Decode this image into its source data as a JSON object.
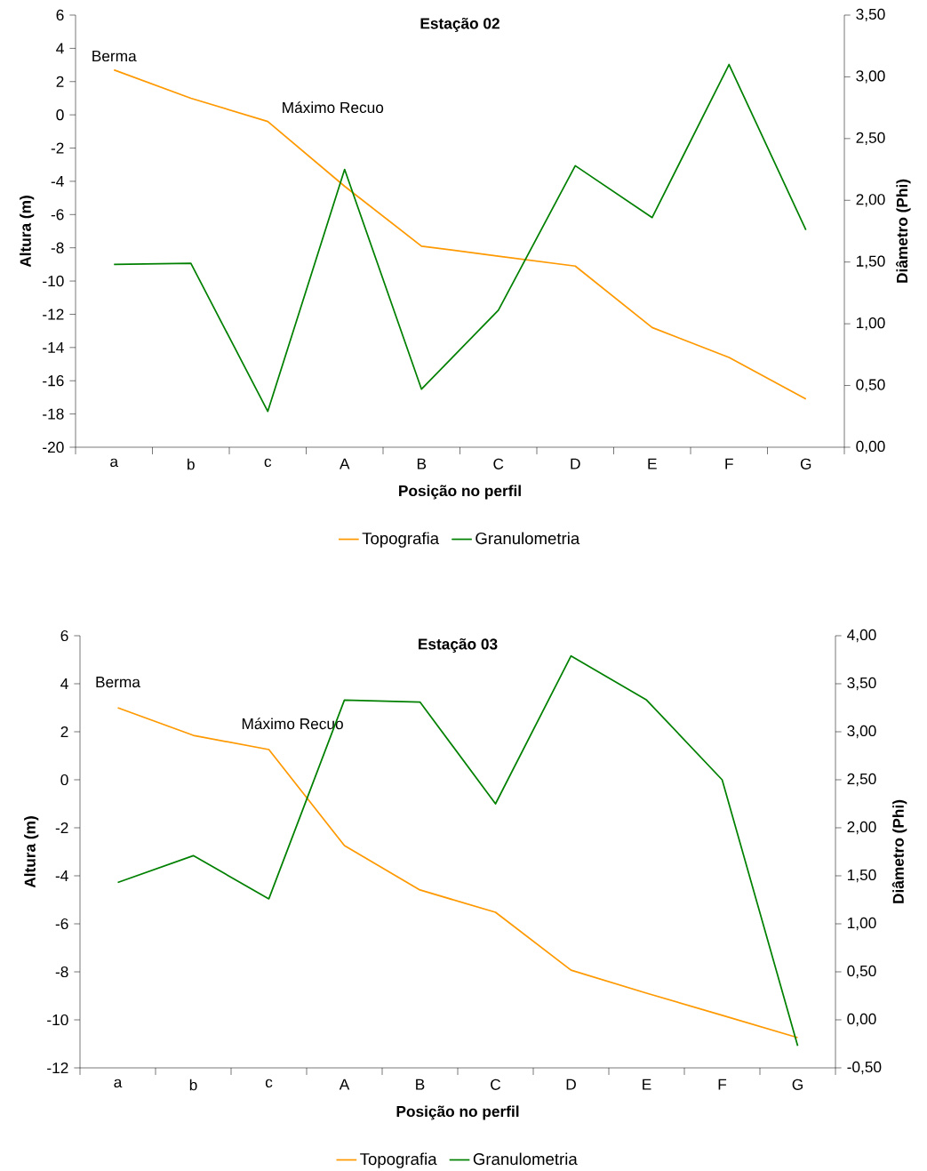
{
  "chart_data": [
    {
      "type": "line",
      "title": "Estação 02",
      "xlabel": "Posição no perfil",
      "ylabel": "Altura (m)",
      "y2label": "Diâmetro (Phi)",
      "categories": [
        "a",
        "b",
        "c",
        "A",
        "B",
        "C",
        "D",
        "E",
        "F",
        "G"
      ],
      "series": [
        {
          "name": "Topografia",
          "color": "#ff9900",
          "values": [
            2.7,
            1.0,
            -0.4,
            -4.3,
            -7.9,
            -8.5,
            -9.1,
            -12.8,
            -14.6,
            -17.1
          ]
        },
        {
          "name": "Granulometria",
          "color": "#008000",
          "axis": "y2",
          "values": [
            1.48,
            1.49,
            0.29,
            2.25,
            0.47,
            1.11,
            2.28,
            1.86,
            3.1,
            1.76
          ]
        }
      ],
      "ylim": [
        -20,
        6
      ],
      "yticks": [
        -20,
        -18,
        -16,
        -14,
        -12,
        -10,
        -8,
        -6,
        -4,
        -2,
        0,
        2,
        4,
        6
      ],
      "y2lim": [
        0,
        3.5
      ],
      "y2ticks": [
        {
          "value": 0,
          "label": "0,00"
        },
        {
          "value": 0.5,
          "label": "0,50"
        },
        {
          "value": 1,
          "label": "1,00"
        },
        {
          "value": 1.5,
          "label": "1,50"
        },
        {
          "value": 2,
          "label": "2,00"
        },
        {
          "value": 2.5,
          "label": "2,50"
        },
        {
          "value": 3,
          "label": "3,00"
        },
        {
          "value": 3.5,
          "label": "3,50"
        }
      ],
      "legend": "bottom",
      "annotations": [
        {
          "text": "Berma",
          "x": "a",
          "y": 2.7
        },
        {
          "text": "Máximo Recuo",
          "x": "c",
          "y": -0.4
        }
      ]
    },
    {
      "type": "line",
      "title": "Estação 03",
      "xlabel": "Posição no perfil",
      "ylabel": "Altura (m)",
      "y2label": "Diâmetro (Phi)",
      "categories": [
        "a",
        "b",
        "c",
        "A",
        "B",
        "C",
        "D",
        "E",
        "F",
        "G"
      ],
      "series": [
        {
          "name": "Topografia",
          "color": "#ff9900",
          "values": [
            3.0,
            1.85,
            1.26,
            -2.74,
            -4.59,
            -5.52,
            -7.93,
            -8.89,
            -9.81,
            -10.74
          ]
        },
        {
          "name": "Granulometria",
          "color": "#008000",
          "axis": "y2",
          "values": [
            1.43,
            1.71,
            1.26,
            3.33,
            3.31,
            2.25,
            3.79,
            3.33,
            2.5,
            -0.27
          ]
        }
      ],
      "ylim": [
        -12,
        6
      ],
      "yticks": [
        -12,
        -10,
        -8,
        -6,
        -4,
        -2,
        0,
        2,
        4,
        6
      ],
      "y2lim": [
        -0.5,
        4
      ],
      "y2ticks": [
        {
          "value": -0.5,
          "label": "-0,50"
        },
        {
          "value": 0,
          "label": "0,00"
        },
        {
          "value": 0.5,
          "label": "0,50"
        },
        {
          "value": 1,
          "label": "1,00"
        },
        {
          "value": 1.5,
          "label": "1,50"
        },
        {
          "value": 2,
          "label": "2,00"
        },
        {
          "value": 2.5,
          "label": "2,50"
        },
        {
          "value": 3,
          "label": "3,00"
        },
        {
          "value": 3.5,
          "label": "3,50"
        },
        {
          "value": 4,
          "label": "4,00"
        }
      ],
      "legend": "bottom",
      "annotations": [
        {
          "text": "Berma",
          "x": "a",
          "y": 3.0
        },
        {
          "text": "Máximo Recuo",
          "x": "c",
          "y": 1.26
        }
      ]
    }
  ]
}
